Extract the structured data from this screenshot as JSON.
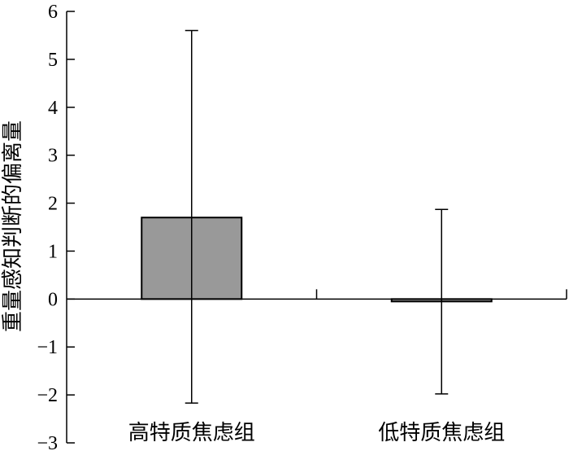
{
  "chart_data": {
    "type": "bar",
    "categories": [
      "高特质焦虑组",
      "低特质焦虑组"
    ],
    "values": [
      1.7,
      -0.05
    ],
    "error_high": [
      5.6,
      1.87
    ],
    "error_low": [
      -2.17,
      -1.98
    ],
    "ylabel": "重量感知判断的偏离量",
    "xlabel": "",
    "ylim": [
      -3,
      6
    ],
    "yticks": [
      -3,
      -2,
      -1,
      0,
      1,
      2,
      3,
      4,
      5,
      6
    ],
    "ytick_labels": [
      "−3",
      "−2",
      "−1",
      "0",
      "1",
      "2",
      "3",
      "4",
      "5",
      "6"
    ],
    "grid": false,
    "bar_color": "#999999",
    "bar_edge_color": "#000000"
  }
}
